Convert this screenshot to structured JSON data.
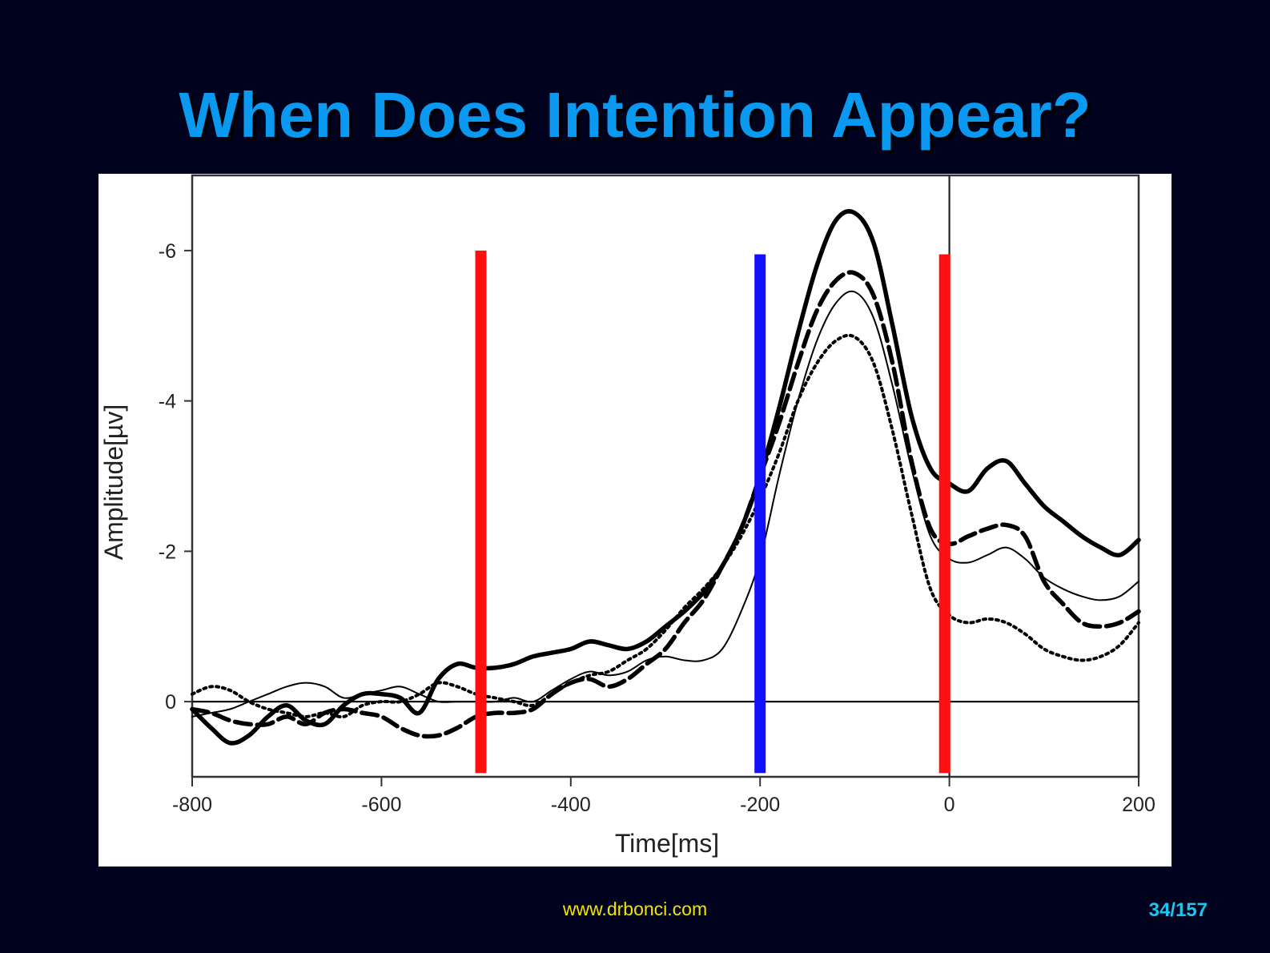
{
  "slide": {
    "title": "When Does Intention Appear?",
    "footer_url": "www.drbonci.com",
    "page_number": "34/157"
  },
  "colors": {
    "background": "#01031e",
    "title": "#0a99f0",
    "footer_url": "#f2e400",
    "page_number": "#18c8f0",
    "marker_red": "#ff1010",
    "marker_blue": "#1010ff"
  },
  "chart_data": {
    "type": "line",
    "title": "",
    "xlabel": "Time[ms]",
    "ylabel": "Amplitude[µv]",
    "xlim": [
      -800,
      200
    ],
    "ylim": [
      1,
      -7
    ],
    "y_inverted": true,
    "x_ticks": [
      -800,
      -600,
      -400,
      -200,
      0,
      200
    ],
    "x_tick_labels": [
      "-800",
      "-600",
      "-400",
      "-200",
      "0",
      "200"
    ],
    "y_ticks": [
      -6,
      -4,
      -2,
      0
    ],
    "y_tick_labels": [
      "-6",
      "-4",
      "-2",
      "0"
    ],
    "grid": false,
    "reference_lines": [
      {
        "axis": "y",
        "value": 0
      },
      {
        "axis": "x",
        "value": 0
      }
    ],
    "vertical_markers": [
      {
        "x": -495,
        "color": "#ff1010",
        "from": 0.95,
        "to": -6.0
      },
      {
        "x": -200,
        "color": "#1010ff",
        "from": 0.95,
        "to": -5.95
      },
      {
        "x": -5,
        "color": "#ff1010",
        "from": 0.95,
        "to": -5.95
      }
    ],
    "series": [
      {
        "style": "thick-solid",
        "x": [
          -800,
          -780,
          -760,
          -740,
          -720,
          -700,
          -680,
          -660,
          -640,
          -620,
          -600,
          -580,
          -560,
          -540,
          -520,
          -500,
          -480,
          -460,
          -440,
          -420,
          -400,
          -380,
          -360,
          -340,
          -320,
          -300,
          -280,
          -260,
          -240,
          -220,
          -200,
          -180,
          -160,
          -140,
          -120,
          -100,
          -80,
          -60,
          -40,
          -20,
          0,
          20,
          40,
          60,
          80,
          100,
          120,
          140,
          160,
          180,
          200
        ],
        "y": [
          0.1,
          0.35,
          0.55,
          0.45,
          0.2,
          0.05,
          0.25,
          0.3,
          0.05,
          -0.1,
          -0.1,
          -0.05,
          0.15,
          -0.3,
          -0.5,
          -0.45,
          -0.45,
          -0.5,
          -0.6,
          -0.65,
          -0.7,
          -0.8,
          -0.75,
          -0.7,
          -0.8,
          -1.0,
          -1.2,
          -1.45,
          -1.8,
          -2.3,
          -3.0,
          -3.9,
          -4.9,
          -5.8,
          -6.4,
          -6.5,
          -6.1,
          -5.0,
          -3.8,
          -3.1,
          -2.9,
          -2.8,
          -3.1,
          -3.2,
          -2.9,
          -2.6,
          -2.4,
          -2.2,
          -2.05,
          -1.95,
          -2.15
        ]
      },
      {
        "style": "dashed",
        "x": [
          -800,
          -780,
          -760,
          -740,
          -720,
          -700,
          -680,
          -660,
          -640,
          -620,
          -600,
          -580,
          -560,
          -540,
          -520,
          -500,
          -480,
          -460,
          -440,
          -420,
          -400,
          -380,
          -360,
          -340,
          -320,
          -300,
          -280,
          -260,
          -240,
          -220,
          -200,
          -180,
          -160,
          -140,
          -120,
          -100,
          -80,
          -60,
          -40,
          -20,
          0,
          20,
          40,
          60,
          80,
          100,
          120,
          140,
          160,
          180,
          200
        ],
        "y": [
          0.1,
          0.15,
          0.25,
          0.3,
          0.3,
          0.2,
          0.3,
          0.15,
          0.1,
          0.15,
          0.2,
          0.35,
          0.45,
          0.45,
          0.35,
          0.2,
          0.15,
          0.15,
          0.1,
          -0.1,
          -0.25,
          -0.3,
          -0.2,
          -0.3,
          -0.5,
          -0.7,
          -1.05,
          -1.35,
          -1.8,
          -2.3,
          -3.0,
          -3.7,
          -4.5,
          -5.2,
          -5.6,
          -5.7,
          -5.4,
          -4.5,
          -3.2,
          -2.3,
          -2.1,
          -2.2,
          -2.3,
          -2.35,
          -2.2,
          -1.6,
          -1.3,
          -1.05,
          -1.0,
          -1.05,
          -1.2
        ]
      },
      {
        "style": "thin-solid",
        "x": [
          -800,
          -780,
          -760,
          -740,
          -720,
          -700,
          -680,
          -660,
          -640,
          -620,
          -600,
          -580,
          -560,
          -540,
          -520,
          -500,
          -480,
          -460,
          -440,
          -420,
          -400,
          -380,
          -360,
          -340,
          -320,
          -300,
          -280,
          -260,
          -240,
          -220,
          -200,
          -180,
          -160,
          -140,
          -120,
          -100,
          -80,
          -60,
          -40,
          -20,
          0,
          20,
          40,
          60,
          80,
          100,
          120,
          140,
          160,
          180,
          200
        ],
        "y": [
          0.2,
          0.15,
          0.1,
          0.0,
          -0.1,
          -0.2,
          -0.25,
          -0.2,
          -0.05,
          -0.1,
          -0.15,
          -0.2,
          -0.1,
          0.0,
          0.0,
          0.0,
          0.0,
          -0.05,
          0.0,
          -0.15,
          -0.3,
          -0.4,
          -0.35,
          -0.4,
          -0.55,
          -0.6,
          -0.55,
          -0.55,
          -0.7,
          -1.2,
          -1.9,
          -3.0,
          -4.0,
          -4.8,
          -5.3,
          -5.45,
          -5.1,
          -4.2,
          -3.1,
          -2.2,
          -1.9,
          -1.85,
          -1.95,
          -2.05,
          -1.9,
          -1.65,
          -1.5,
          -1.4,
          -1.35,
          -1.4,
          -1.6
        ]
      },
      {
        "style": "dotted-plus",
        "x": [
          -800,
          -780,
          -760,
          -740,
          -720,
          -700,
          -680,
          -660,
          -640,
          -620,
          -600,
          -580,
          -560,
          -540,
          -520,
          -500,
          -480,
          -460,
          -440,
          -420,
          -400,
          -380,
          -360,
          -340,
          -320,
          -300,
          -280,
          -260,
          -240,
          -220,
          -200,
          -180,
          -160,
          -140,
          -120,
          -100,
          -80,
          -60,
          -40,
          -20,
          0,
          20,
          40,
          60,
          80,
          100,
          120,
          140,
          160,
          180,
          200
        ],
        "y": [
          -0.1,
          -0.2,
          -0.15,
          0.0,
          0.1,
          0.15,
          0.2,
          0.15,
          0.2,
          0.05,
          0.0,
          0.0,
          -0.1,
          -0.25,
          -0.2,
          -0.1,
          -0.05,
          0.0,
          0.05,
          -0.1,
          -0.25,
          -0.35,
          -0.4,
          -0.55,
          -0.7,
          -0.95,
          -1.25,
          -1.5,
          -1.8,
          -2.2,
          -2.7,
          -3.3,
          -4.0,
          -4.5,
          -4.8,
          -4.85,
          -4.5,
          -3.6,
          -2.5,
          -1.5,
          -1.15,
          -1.05,
          -1.1,
          -1.05,
          -0.9,
          -0.7,
          -0.6,
          -0.55,
          -0.6,
          -0.75,
          -1.05
        ]
      }
    ]
  }
}
